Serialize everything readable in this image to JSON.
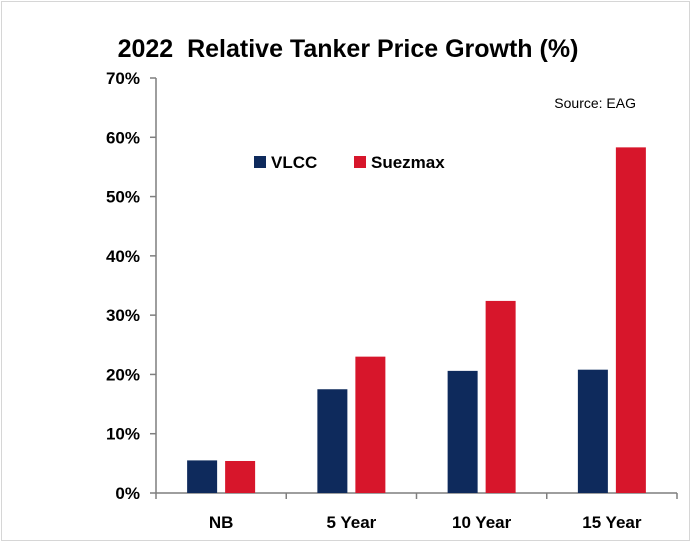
{
  "chart_data": {
    "type": "bar",
    "title": "2022  Relative Tanker Price Growth (%)",
    "annotation": "Source: EAG",
    "categories": [
      "NB",
      "5 Year",
      "10 Year",
      "15 Year"
    ],
    "series": [
      {
        "name": "VLCC",
        "color": "#0e2a5c",
        "values": [
          5.5,
          17.5,
          20.6,
          20.8
        ]
      },
      {
        "name": "Suezmax",
        "color": "#d7162b",
        "values": [
          5.4,
          23.0,
          32.4,
          58.3
        ]
      }
    ],
    "ylim": [
      0,
      70
    ],
    "yticks": [
      "0%",
      "10%",
      "20%",
      "30%",
      "40%",
      "50%",
      "60%",
      "70%"
    ],
    "ytick_values": [
      0,
      10,
      20,
      30,
      40,
      50,
      60,
      70
    ],
    "xlabel": "",
    "ylabel": "",
    "grid": false,
    "legend_position": "top-left"
  }
}
